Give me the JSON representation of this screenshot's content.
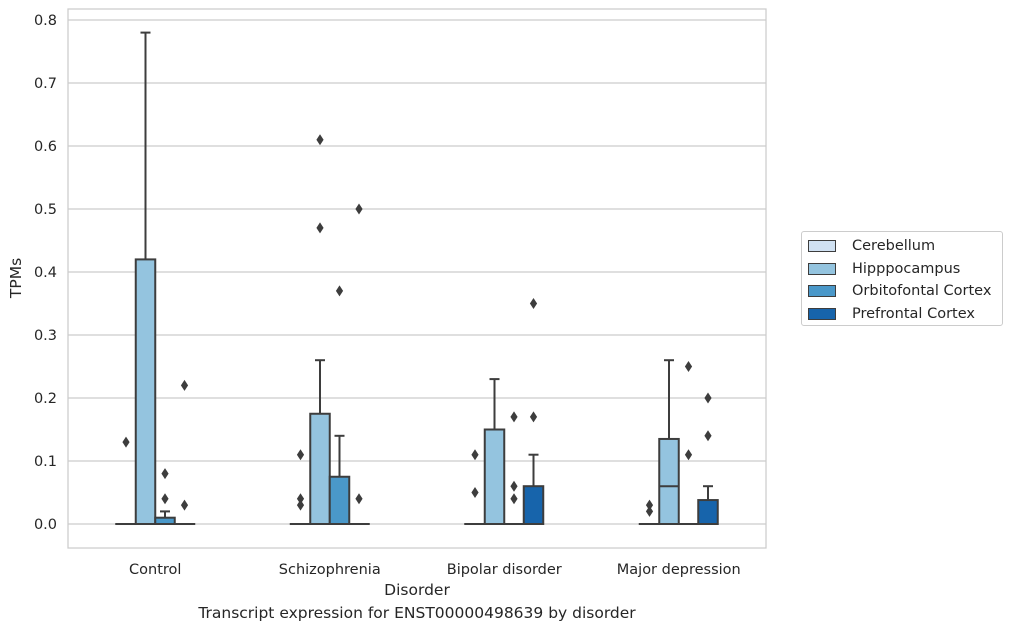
{
  "caption": "Transcript expression for ENST00000498639 by disorder",
  "chart_data": {
    "type": "box",
    "xlabel": "Disorder",
    "ylabel": "TPMs",
    "ylim": [
      -0.04,
      0.82
    ],
    "yticks": [
      0.0,
      0.1,
      0.2,
      0.3,
      0.4,
      0.5,
      0.6,
      0.7,
      0.8
    ],
    "ytick_labels": [
      "0.0",
      "0.1",
      "0.2",
      "0.3",
      "0.4",
      "0.5",
      "0.6",
      "0.7",
      "0.8"
    ],
    "grid": "horizontal",
    "legend_position": "right, outside",
    "categories": [
      "Control",
      "Schizophrenia",
      "Bipolar disorder",
      "Major depression"
    ],
    "series": [
      {
        "name": "Cerebellum",
        "color": "#d0e1f2",
        "boxes": [
          {
            "q1": 0,
            "median": 0,
            "q3": 0,
            "whisker_low": 0,
            "whisker_high": 0,
            "outliers": [
              0.13
            ]
          },
          {
            "q1": 0,
            "median": 0,
            "q3": 0,
            "whisker_low": 0,
            "whisker_high": 0,
            "outliers": [
              0.11,
              0.04,
              0.03
            ]
          },
          {
            "q1": 0,
            "median": 0,
            "q3": 0,
            "whisker_low": 0,
            "whisker_high": 0,
            "outliers": [
              0.11,
              0.05
            ]
          },
          {
            "q1": 0,
            "median": 0,
            "q3": 0,
            "whisker_low": 0,
            "whisker_high": 0,
            "outliers": [
              0.03,
              0.02
            ]
          }
        ]
      },
      {
        "name": "Hipppocampus",
        "color": "#94c4df",
        "boxes": [
          {
            "q1": 0,
            "median": 0,
            "q3": 0.42,
            "whisker_low": 0,
            "whisker_high": 0.78,
            "outliers": []
          },
          {
            "q1": 0,
            "median": 0,
            "q3": 0.175,
            "whisker_low": 0,
            "whisker_high": 0.26,
            "outliers": [
              0.61,
              0.47
            ]
          },
          {
            "q1": 0,
            "median": 0,
            "q3": 0.15,
            "whisker_low": 0,
            "whisker_high": 0.23,
            "outliers": []
          },
          {
            "q1": 0,
            "median": 0.06,
            "q3": 0.135,
            "whisker_low": 0,
            "whisker_high": 0.26,
            "outliers": []
          }
        ]
      },
      {
        "name": "Orbitofontal Cortex",
        "color": "#4a98c9",
        "boxes": [
          {
            "q1": 0,
            "median": 0,
            "q3": 0.01,
            "whisker_low": 0,
            "whisker_high": 0.02,
            "outliers": [
              0.08,
              0.04
            ]
          },
          {
            "q1": 0,
            "median": 0,
            "q3": 0.075,
            "whisker_low": 0,
            "whisker_high": 0.14,
            "outliers": [
              0.37
            ]
          },
          {
            "q1": 0,
            "median": 0,
            "q3": 0,
            "whisker_low": 0,
            "whisker_high": 0,
            "outliers": [
              0.17,
              0.06,
              0.04
            ]
          },
          {
            "q1": 0,
            "median": 0,
            "q3": 0,
            "whisker_low": 0,
            "whisker_high": 0,
            "outliers": [
              0.25,
              0.11
            ]
          }
        ]
      },
      {
        "name": "Prefrontal Cortex",
        "color": "#1764ab",
        "boxes": [
          {
            "q1": 0,
            "median": 0,
            "q3": 0,
            "whisker_low": 0,
            "whisker_high": 0,
            "outliers": [
              0.22,
              0.03
            ]
          },
          {
            "q1": 0,
            "median": 0,
            "q3": 0,
            "whisker_low": 0,
            "whisker_high": 0,
            "outliers": [
              0.5,
              0.04
            ]
          },
          {
            "q1": 0,
            "median": 0,
            "q3": 0.06,
            "whisker_low": 0,
            "whisker_high": 0.11,
            "outliers": [
              0.35,
              0.17
            ]
          },
          {
            "q1": 0,
            "median": 0,
            "q3": 0.038,
            "whisker_low": 0,
            "whisker_high": 0.06,
            "outliers": [
              0.2,
              0.14
            ]
          }
        ]
      }
    ]
  }
}
